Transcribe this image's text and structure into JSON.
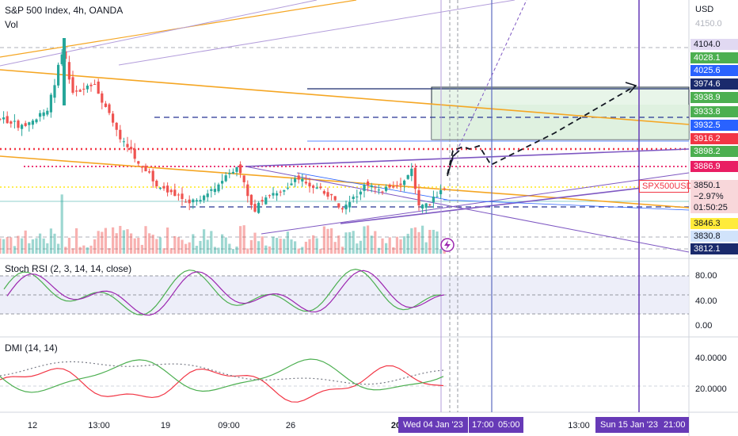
{
  "header": {
    "symbol_line": "S&P 500 Index, 4h, OANDA",
    "volume_label": "Vol",
    "currency": "USD",
    "faded_top_price": "4150.0"
  },
  "price_scale_labels": [
    {
      "text": "4104.0",
      "bg": "#e1d9f2",
      "fg": "#131722"
    },
    {
      "text": "4028.1",
      "bg": "#4caf50",
      "fg": "#ffffff"
    },
    {
      "text": "4025.6",
      "bg": "#2962ff",
      "fg": "#ffffff"
    },
    {
      "text": "3974.6",
      "bg": "#1a2a6c",
      "fg": "#ffffff"
    },
    {
      "text": "3938.9",
      "bg": "#4caf50",
      "fg": "#ffffff"
    },
    {
      "text": "3933.8",
      "bg": "#4caf50",
      "fg": "#ffffff"
    },
    {
      "text": "3932.5",
      "bg": "#2962ff",
      "fg": "#ffffff"
    },
    {
      "text": "3916.2",
      "bg": "#f23645",
      "fg": "#ffffff"
    },
    {
      "text": "3898.2",
      "bg": "#4caf50",
      "fg": "#ffffff"
    },
    {
      "text": "3886.9",
      "bg": "#e91e63",
      "fg": "#ffffff"
    },
    {
      "text": "3846.3",
      "bg": "#ffeb3b",
      "fg": "#131722"
    },
    {
      "text": "3830.8",
      "bg": "#d1e3fb",
      "fg": "#131722"
    },
    {
      "text": "3812.1",
      "bg": "#1a2a6c",
      "fg": "#ffffff"
    }
  ],
  "last_price": {
    "symbol": "SPX500USD",
    "price": "3850.1",
    "change": "−2.97%",
    "countdown": "01:50:25",
    "color": "#f23645"
  },
  "stoch_rsi": {
    "label": "Stoch RSI (2, 3, 14, 14, close)",
    "ticks": [
      "80.00",
      "40.00",
      "0.00"
    ]
  },
  "dmi": {
    "label": "DMI (14, 14)",
    "ticks": [
      "40.0000",
      "20.0000"
    ]
  },
  "time_axis": {
    "labels": [
      "12",
      "13:00",
      "19",
      "09:00",
      "26",
      "20",
      "17:00",
      "05:00",
      "13:00",
      "21:00"
    ],
    "highlight_1": "Wed 04 Jan '23",
    "highlight_2": "Sun 15 Jan '23"
  },
  "colors": {
    "up": "#26a69a",
    "down": "#ef5350",
    "orange": "#f5a623",
    "purple": "#7e57c2",
    "navy": "#1a2a6c"
  }
}
